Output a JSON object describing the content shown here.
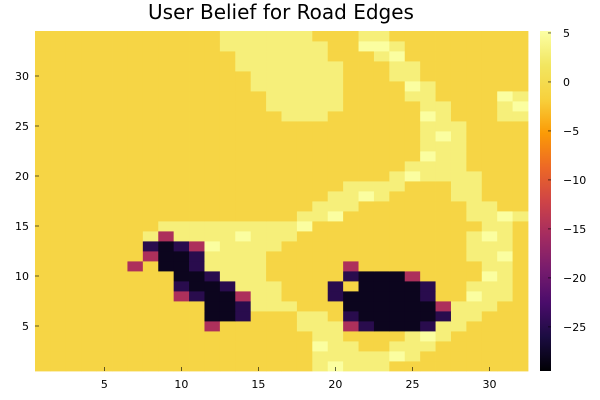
{
  "chart_data": {
    "type": "heatmap",
    "title": "User Belief for Road Edges",
    "xlabel": "",
    "ylabel": "",
    "x_range": [
      0.5,
      32.5
    ],
    "y_range": [
      0.5,
      34.5
    ],
    "x_ticks": [
      5,
      10,
      15,
      20,
      25,
      30
    ],
    "y_ticks": [
      5,
      10,
      15,
      20,
      25,
      30
    ],
    "colorbar": {
      "colormap": "inferno",
      "clim": [
        -29.5,
        5.2
      ],
      "ticks": [
        5,
        0,
        -5,
        -10,
        -15,
        -20,
        -25
      ],
      "tick_labels": [
        "5",
        "0",
        "−5",
        "−10",
        "−15",
        "−20",
        "−25"
      ]
    },
    "background_value": -1,
    "value_legend": {
      "bg": -1,
      "road": 3,
      "road_bright": 5,
      "dark": -28,
      "dark_purple": -25,
      "mid_red": -15
    },
    "grid": false,
    "legend": "none",
    "bands": [
      {
        "value": 3,
        "cells": [
          [
            13,
            34
          ],
          [
            14,
            34
          ],
          [
            15,
            34
          ],
          [
            16,
            34
          ],
          [
            17,
            34
          ],
          [
            18,
            34
          ],
          [
            13,
            33
          ],
          [
            14,
            33
          ],
          [
            15,
            33
          ],
          [
            16,
            33
          ],
          [
            17,
            33
          ],
          [
            18,
            33
          ],
          [
            19,
            33
          ],
          [
            14,
            32
          ],
          [
            15,
            32
          ],
          [
            16,
            32
          ],
          [
            17,
            32
          ],
          [
            18,
            32
          ],
          [
            19,
            32
          ],
          [
            14,
            31
          ],
          [
            15,
            31
          ],
          [
            16,
            31
          ],
          [
            17,
            31
          ],
          [
            18,
            31
          ],
          [
            19,
            31
          ],
          [
            20,
            31
          ],
          [
            15,
            30
          ],
          [
            16,
            30
          ],
          [
            17,
            30
          ],
          [
            18,
            30
          ],
          [
            19,
            30
          ],
          [
            20,
            30
          ],
          [
            15,
            29
          ],
          [
            16,
            29
          ],
          [
            17,
            29
          ],
          [
            18,
            29
          ],
          [
            19,
            29
          ],
          [
            20,
            29
          ],
          [
            16,
            28
          ],
          [
            17,
            28
          ],
          [
            18,
            28
          ],
          [
            19,
            28
          ],
          [
            20,
            28
          ],
          [
            16,
            27
          ],
          [
            17,
            27
          ],
          [
            18,
            27
          ],
          [
            19,
            27
          ],
          [
            20,
            27
          ],
          [
            17,
            26
          ],
          [
            18,
            26
          ],
          [
            19,
            26
          ],
          [
            22,
            34
          ],
          [
            23,
            34
          ],
          [
            22,
            33
          ],
          [
            23,
            33
          ],
          [
            24,
            33
          ],
          [
            23,
            32
          ],
          [
            24,
            32
          ],
          [
            24,
            31
          ],
          [
            25,
            31
          ],
          [
            24,
            30
          ],
          [
            25,
            30
          ],
          [
            25,
            29
          ],
          [
            26,
            29
          ],
          [
            25,
            28
          ],
          [
            26,
            28
          ],
          [
            26,
            27
          ],
          [
            27,
            27
          ],
          [
            26,
            26
          ],
          [
            27,
            26
          ],
          [
            26,
            25
          ],
          [
            27,
            25
          ],
          [
            28,
            25
          ],
          [
            26,
            24
          ],
          [
            27,
            24
          ],
          [
            28,
            24
          ],
          [
            26,
            23
          ],
          [
            27,
            23
          ],
          [
            28,
            23
          ],
          [
            26,
            22
          ],
          [
            27,
            22
          ],
          [
            28,
            22
          ],
          [
            25,
            21
          ],
          [
            26,
            21
          ],
          [
            27,
            21
          ],
          [
            28,
            21
          ],
          [
            24,
            20
          ],
          [
            25,
            20
          ],
          [
            26,
            20
          ],
          [
            27,
            20
          ],
          [
            28,
            20
          ],
          [
            29,
            20
          ],
          [
            21,
            19
          ],
          [
            22,
            19
          ],
          [
            23,
            19
          ],
          [
            24,
            19
          ],
          [
            28,
            19
          ],
          [
            29,
            19
          ],
          [
            20,
            18
          ],
          [
            21,
            18
          ],
          [
            22,
            18
          ],
          [
            23,
            18
          ],
          [
            28,
            18
          ],
          [
            29,
            18
          ],
          [
            19,
            17
          ],
          [
            20,
            17
          ],
          [
            21,
            17
          ],
          [
            29,
            17
          ],
          [
            30,
            17
          ],
          [
            18,
            16
          ],
          [
            19,
            16
          ],
          [
            20,
            16
          ],
          [
            29,
            16
          ],
          [
            30,
            16
          ],
          [
            31,
            16
          ],
          [
            32,
            16
          ],
          [
            9,
            15
          ],
          [
            10,
            15
          ],
          [
            11,
            15
          ],
          [
            12,
            15
          ],
          [
            13,
            15
          ],
          [
            14,
            15
          ],
          [
            15,
            15
          ],
          [
            16,
            15
          ],
          [
            17,
            15
          ],
          [
            18,
            15
          ],
          [
            30,
            15
          ],
          [
            31,
            15
          ],
          [
            8,
            14
          ],
          [
            9,
            14
          ],
          [
            10,
            14
          ],
          [
            11,
            14
          ],
          [
            12,
            14
          ],
          [
            13,
            14
          ],
          [
            14,
            14
          ],
          [
            15,
            14
          ],
          [
            16,
            14
          ],
          [
            17,
            14
          ],
          [
            29,
            14
          ],
          [
            30,
            14
          ],
          [
            31,
            14
          ],
          [
            10,
            13
          ],
          [
            11,
            13
          ],
          [
            12,
            13
          ],
          [
            13,
            13
          ],
          [
            14,
            13
          ],
          [
            15,
            13
          ],
          [
            16,
            13
          ],
          [
            29,
            13
          ],
          [
            30,
            13
          ],
          [
            31,
            13
          ],
          [
            11,
            12
          ],
          [
            12,
            12
          ],
          [
            13,
            12
          ],
          [
            14,
            12
          ],
          [
            15,
            12
          ],
          [
            29,
            12
          ],
          [
            30,
            12
          ],
          [
            31,
            12
          ],
          [
            12,
            11
          ],
          [
            13,
            11
          ],
          [
            14,
            11
          ],
          [
            15,
            11
          ],
          [
            30,
            11
          ],
          [
            31,
            11
          ],
          [
            13,
            10
          ],
          [
            14,
            10
          ],
          [
            15,
            10
          ],
          [
            30,
            10
          ],
          [
            31,
            10
          ],
          [
            13,
            9
          ],
          [
            14,
            9
          ],
          [
            15,
            9
          ],
          [
            16,
            9
          ],
          [
            29,
            9
          ],
          [
            30,
            9
          ],
          [
            31,
            9
          ],
          [
            14,
            8
          ],
          [
            15,
            8
          ],
          [
            16,
            8
          ],
          [
            29,
            8
          ],
          [
            30,
            8
          ],
          [
            31,
            8
          ],
          [
            14,
            7
          ],
          [
            15,
            7
          ],
          [
            16,
            7
          ],
          [
            17,
            7
          ],
          [
            28,
            7
          ],
          [
            29,
            7
          ],
          [
            30,
            7
          ],
          [
            18,
            6
          ],
          [
            19,
            6
          ],
          [
            27,
            6
          ],
          [
            28,
            6
          ],
          [
            29,
            6
          ],
          [
            18,
            5
          ],
          [
            19,
            5
          ],
          [
            20,
            5
          ],
          [
            26,
            5
          ],
          [
            27,
            5
          ],
          [
            28,
            5
          ],
          [
            19,
            4
          ],
          [
            20,
            4
          ],
          [
            25,
            4
          ],
          [
            26,
            4
          ],
          [
            27,
            4
          ],
          [
            19,
            3
          ],
          [
            20,
            3
          ],
          [
            21,
            3
          ],
          [
            24,
            3
          ],
          [
            25,
            3
          ],
          [
            26,
            3
          ],
          [
            19,
            2
          ],
          [
            20,
            2
          ],
          [
            21,
            2
          ],
          [
            22,
            2
          ],
          [
            23,
            2
          ],
          [
            24,
            2
          ],
          [
            25,
            2
          ],
          [
            19,
            1
          ],
          [
            20,
            1
          ],
          [
            21,
            1
          ],
          [
            22,
            1
          ],
          [
            23,
            1
          ],
          [
            31,
            26
          ],
          [
            32,
            26
          ],
          [
            31,
            27
          ],
          [
            32,
            27
          ],
          [
            31,
            28
          ],
          [
            32,
            28
          ]
        ]
      },
      {
        "value": 5,
        "cells": [
          [
            22,
            33
          ],
          [
            23,
            33
          ],
          [
            24,
            32
          ],
          [
            25,
            29
          ],
          [
            26,
            26
          ],
          [
            27,
            24
          ],
          [
            26,
            22
          ],
          [
            25,
            20
          ],
          [
            22,
            18
          ],
          [
            20,
            16
          ],
          [
            18,
            15
          ],
          [
            31,
            16
          ],
          [
            30,
            14
          ],
          [
            31,
            12
          ],
          [
            30,
            10
          ],
          [
            29,
            8
          ],
          [
            27,
            6
          ],
          [
            26,
            4
          ],
          [
            24,
            2
          ],
          [
            20,
            1
          ],
          [
            19,
            3
          ],
          [
            32,
            27
          ],
          [
            14,
            14
          ],
          [
            12,
            13
          ],
          [
            31,
            28
          ]
        ]
      },
      {
        "value": -28,
        "cells": [
          [
            9,
            13
          ],
          [
            9,
            12
          ],
          [
            10,
            12
          ],
          [
            9,
            11
          ],
          [
            10,
            11
          ],
          [
            10,
            10
          ],
          [
            11,
            10
          ],
          [
            11,
            9
          ],
          [
            12,
            9
          ],
          [
            12,
            8
          ],
          [
            13,
            8
          ],
          [
            12,
            7
          ],
          [
            13,
            7
          ],
          [
            12,
            6
          ],
          [
            13,
            6
          ],
          [
            22,
            10
          ],
          [
            23,
            10
          ],
          [
            24,
            10
          ],
          [
            22,
            9
          ],
          [
            23,
            9
          ],
          [
            24,
            9
          ],
          [
            25,
            9
          ],
          [
            21,
            8
          ],
          [
            22,
            8
          ],
          [
            23,
            8
          ],
          [
            24,
            8
          ],
          [
            25,
            8
          ],
          [
            21,
            7
          ],
          [
            22,
            7
          ],
          [
            23,
            7
          ],
          [
            24,
            7
          ],
          [
            25,
            7
          ],
          [
            26,
            7
          ],
          [
            22,
            6
          ],
          [
            23,
            6
          ],
          [
            24,
            6
          ],
          [
            25,
            6
          ],
          [
            26,
            6
          ],
          [
            23,
            5
          ],
          [
            24,
            5
          ],
          [
            25,
            5
          ]
        ]
      },
      {
        "value": -25,
        "cells": [
          [
            8,
            13
          ],
          [
            10,
            13
          ],
          [
            11,
            12
          ],
          [
            11,
            11
          ],
          [
            12,
            10
          ],
          [
            10,
            9
          ],
          [
            13,
            9
          ],
          [
            11,
            8
          ],
          [
            14,
            7
          ],
          [
            14,
            6
          ],
          [
            21,
            10
          ],
          [
            25,
            10
          ],
          [
            20,
            9
          ],
          [
            26,
            9
          ],
          [
            20,
            8
          ],
          [
            26,
            8
          ],
          [
            21,
            6
          ],
          [
            27,
            6
          ],
          [
            22,
            5
          ],
          [
            26,
            5
          ]
        ]
      },
      {
        "value": -15,
        "cells": [
          [
            9,
            14
          ],
          [
            8,
            12
          ],
          [
            7,
            11
          ],
          [
            11,
            13
          ],
          [
            10,
            8
          ],
          [
            14,
            8
          ],
          [
            12,
            5
          ],
          [
            21,
            11
          ],
          [
            25,
            10
          ],
          [
            27,
            7
          ],
          [
            21,
            5
          ]
        ]
      }
    ]
  }
}
